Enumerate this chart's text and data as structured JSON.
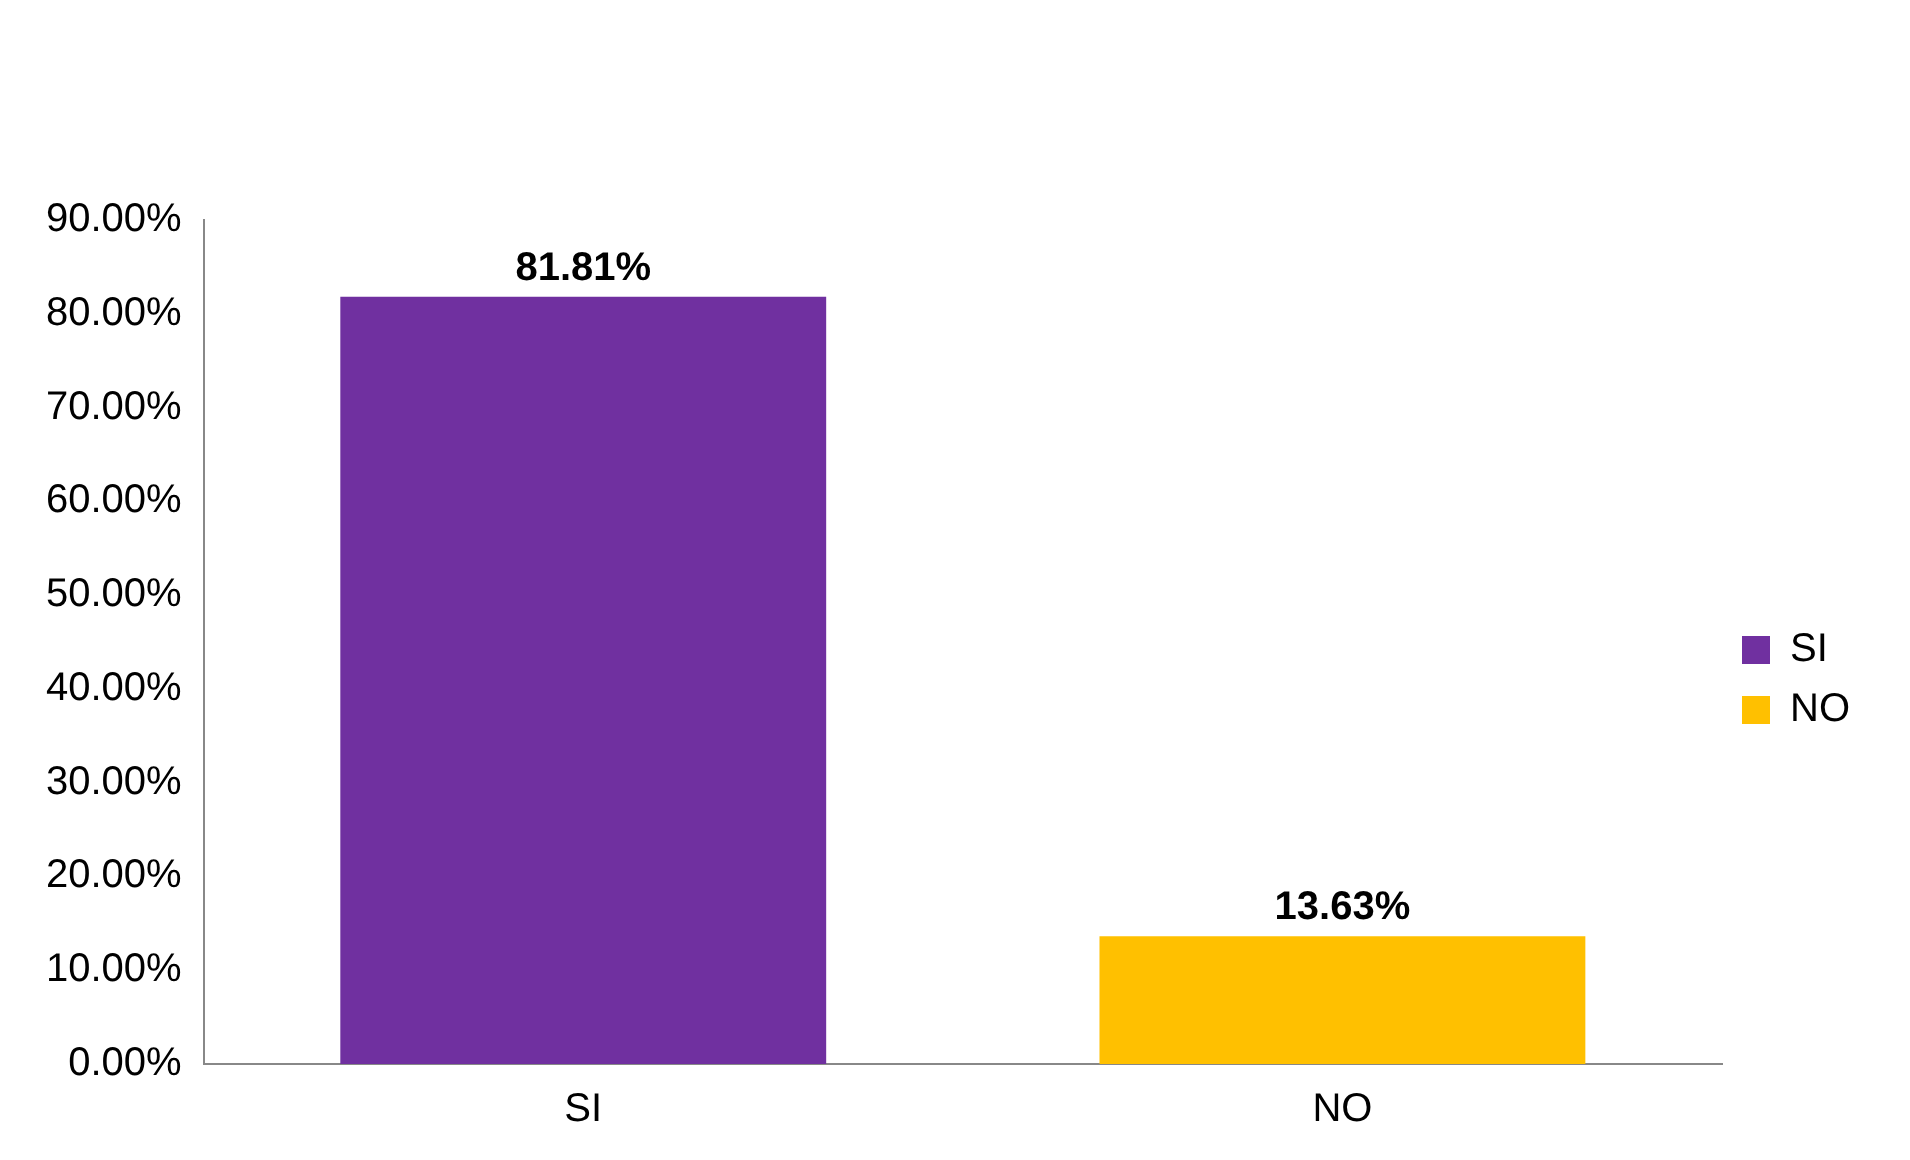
{
  "chart_data": {
    "type": "bar",
    "categories": [
      "SI",
      "NO"
    ],
    "series": [
      {
        "name": "SI",
        "color": "#7030a0",
        "values": [
          81.81,
          null
        ]
      },
      {
        "name": "NO",
        "color": "#ffc000",
        "values": [
          null,
          13.63
        ]
      }
    ],
    "ylim": [
      0,
      90
    ],
    "yticks": [
      {
        "value": 0,
        "label": "0.00%"
      },
      {
        "value": 10,
        "label": "10.00%"
      },
      {
        "value": 20,
        "label": "20.00%"
      },
      {
        "value": 30,
        "label": "30.00%"
      },
      {
        "value": 40,
        "label": "40.00%"
      },
      {
        "value": 50,
        "label": "50.00%"
      },
      {
        "value": 60,
        "label": "60.00%"
      },
      {
        "value": 70,
        "label": "70.00%"
      },
      {
        "value": 80,
        "label": "80.00%"
      },
      {
        "value": 90,
        "label": "90.00%"
      }
    ],
    "value_labels": [
      "81.81%",
      "13.63%"
    ],
    "grid": false,
    "legend": "right"
  }
}
